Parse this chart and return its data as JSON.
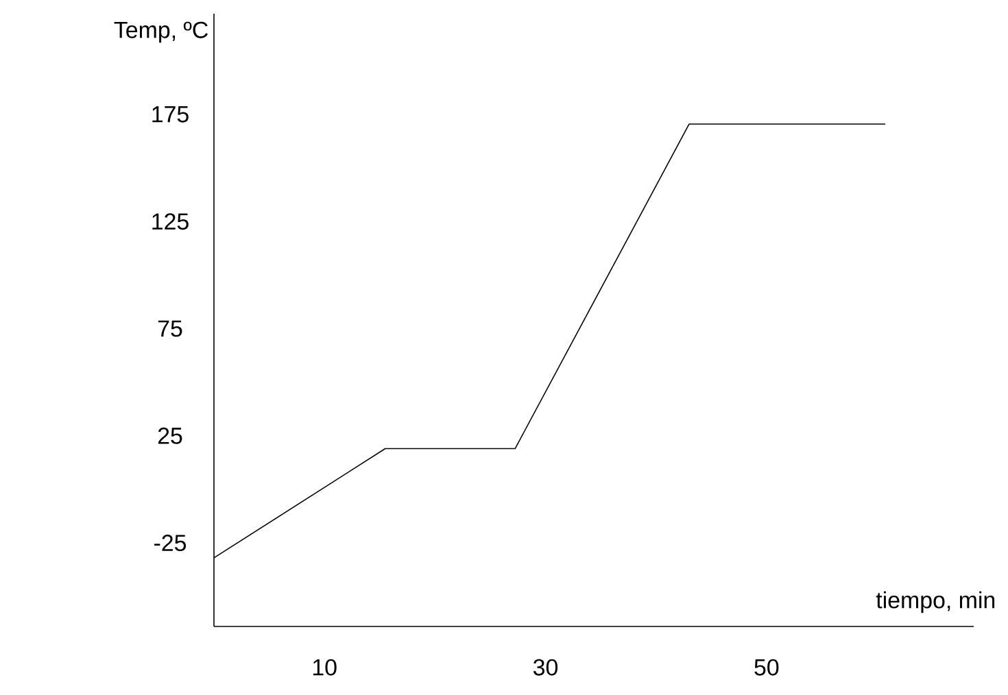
{
  "chart_data": {
    "type": "line",
    "xlabel": "tiempo, min",
    "ylabel": "Temp, ºC",
    "x": [
      0,
      15.5,
      27.25,
      43,
      60.75
    ],
    "values": [
      -32,
      19,
      19,
      170.5,
      170.5
    ],
    "color": "#000000",
    "xlim": [
      0,
      68.75
    ],
    "ylim": [
      -64,
      222
    ],
    "xticks": [
      10,
      30,
      50
    ],
    "yticks": [
      -25,
      25,
      75,
      125,
      175
    ]
  }
}
